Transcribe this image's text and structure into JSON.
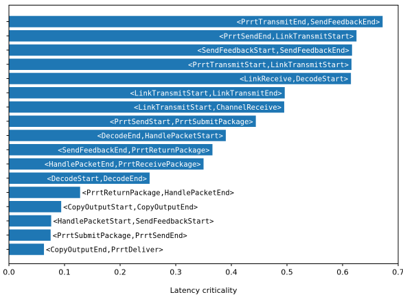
{
  "chart_data": {
    "type": "bar",
    "orientation": "horizontal",
    "xlabel": "Latency criticality",
    "ylabel": "",
    "xlim": [
      0,
      0.7
    ],
    "xticks": [
      "0.0",
      "0.1",
      "0.2",
      "0.3",
      "0.4",
      "0.5",
      "0.6",
      "0.7"
    ],
    "grid": false,
    "bar_color": "#1f77b4",
    "categories": [
      "<PrrtTransmitEnd,SendFeedbackEnd>",
      "<PrrtSendEnd,LinkTransmitStart>",
      "<SendFeedbackStart,SendFeedbackEnd>",
      "<PrrtTransmitStart,LinkTransmitStart>",
      "<LinkReceive,DecodeStart>",
      "<LinkTransmitStart,LinkTransmitEnd>",
      "<LinkTransmitStart,ChannelReceive>",
      "<PrrtSendStart,PrrtSubmitPackage>",
      "<DecodeEnd,HandlePacketStart>",
      "<SendFeedbackEnd,PrrtReturnPackage>",
      "<HandlePacketEnd,PrrtReceivePackage>",
      "<DecodeStart,DecodeEnd>",
      "<PrrtReturnPackage,HandlePacketEnd>",
      "<CopyOutputStart,CopyOutputEnd>",
      "<HandlePacketStart,SendFeedbackStart>",
      "<PrrtSubmitPackage,PrrtSendEnd>",
      "<CopyOutputEnd,PrrtDeliver>"
    ],
    "values": [
      0.672,
      0.625,
      0.617,
      0.616,
      0.615,
      0.496,
      0.495,
      0.444,
      0.39,
      0.366,
      0.35,
      0.253,
      0.128,
      0.094,
      0.076,
      0.075,
      0.063
    ]
  }
}
